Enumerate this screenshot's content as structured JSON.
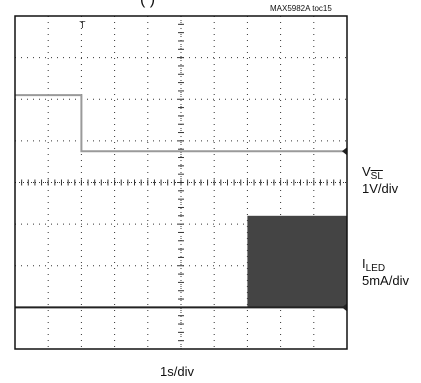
{
  "header_partial": "(           )",
  "chart_data": {
    "type": "oscilloscope",
    "toc_label": "MAX5982A toc15",
    "xlabel": "1s/div",
    "divisions": {
      "x": 10,
      "y": 8
    },
    "trigger_marker": "T",
    "channels": [
      {
        "name_main": "V",
        "name_sub": "SL",
        "sub_overline": true,
        "scale": "1V/div",
        "baseline_div": 3.25,
        "points": [
          [
            0,
            1.35
          ],
          [
            2.0,
            1.35
          ],
          [
            2.0,
            0
          ],
          [
            10,
            0
          ]
        ]
      },
      {
        "name_main": "I",
        "name_sub": "LED",
        "sub_overline": false,
        "scale": "5mA/div",
        "baseline_div": 7.0,
        "points": [
          [
            0,
            0
          ],
          [
            7.0,
            0
          ],
          [
            7.0,
            2.2
          ],
          [
            10,
            2.2
          ]
        ],
        "pwm_filled_from_div": 7.0
      }
    ]
  }
}
